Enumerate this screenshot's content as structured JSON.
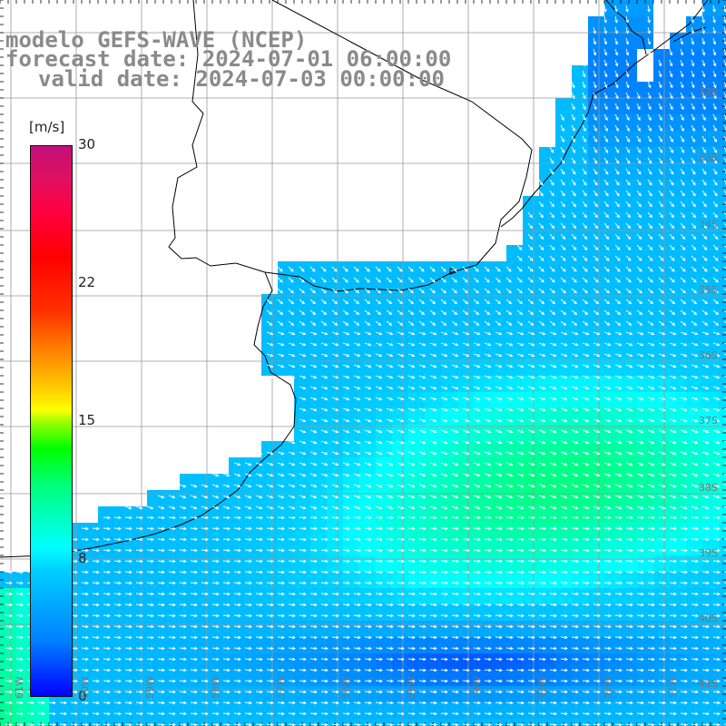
{
  "title": {
    "line1": "modelo GEFS-WAVE (NCEP)",
    "line2": "forecast date: 2024-07-01 06:00:00",
    "line3": "valid date: 2024-07-03 00:00:00"
  },
  "colorbar": {
    "unit": "[m/s]",
    "ticks": [
      "30",
      "22",
      "15",
      "8",
      "0"
    ],
    "range": [
      0,
      30
    ]
  },
  "lat_labels": [
    "32S",
    "33S",
    "34S",
    "35S",
    "36S",
    "37S",
    "38S",
    "39S",
    "40S",
    "41S"
  ],
  "lon_labels": [
    "61W",
    "60W",
    "59W",
    "58W",
    "57W",
    "56W",
    "55W",
    "54W",
    "53W",
    "52W",
    "51W"
  ],
  "colors": {
    "land": "#ffffff",
    "grid": "#999999",
    "coast": "#000000",
    "vectors": "#ffffff"
  }
}
